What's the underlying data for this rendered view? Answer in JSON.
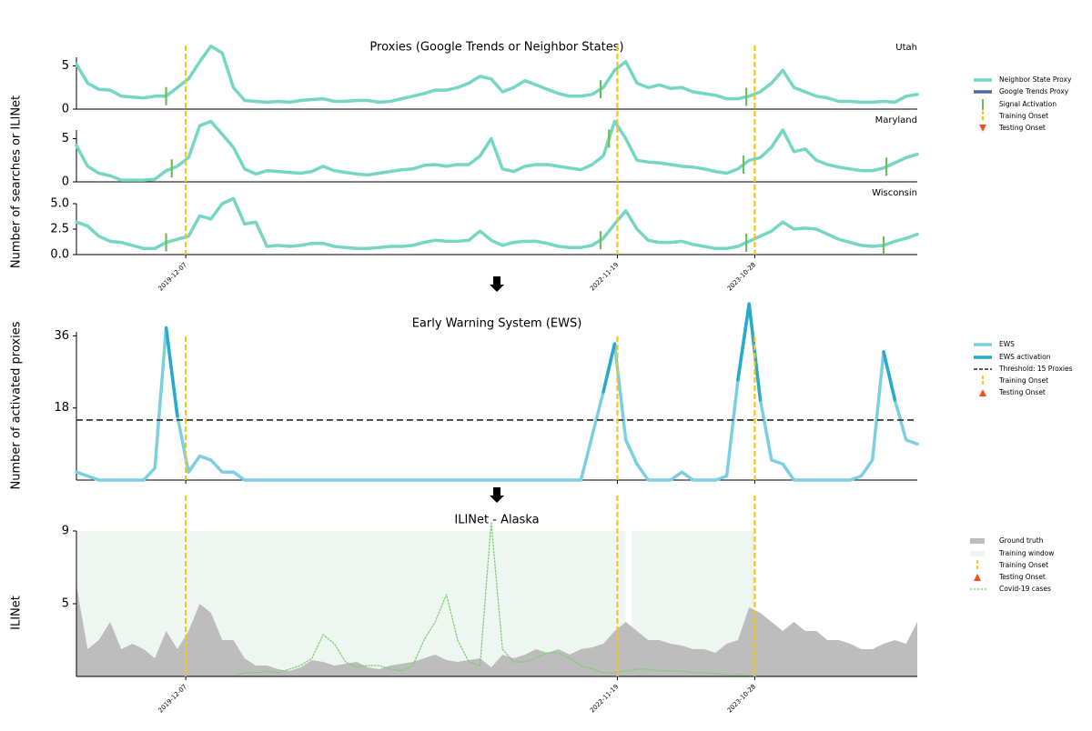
{
  "chart_data": {
    "type": "line",
    "x": [
      "2019-03-09",
      "2019-04-06",
      "2019-05-04",
      "2019-06-01",
      "2019-06-29",
      "2019-07-27",
      "2019-08-24",
      "2019-09-21",
      "2019-10-19",
      "2019-11-16",
      "2019-12-14",
      "2020-01-11",
      "2020-02-08",
      "2020-03-07",
      "2020-04-04",
      "2020-05-02",
      "2020-05-30",
      "2020-06-27",
      "2020-07-25",
      "2020-08-22",
      "2020-09-19",
      "2020-10-17",
      "2020-11-14",
      "2020-12-12",
      "2021-01-09",
      "2021-02-06",
      "2021-03-06",
      "2021-04-03",
      "2021-05-01",
      "2021-05-29",
      "2021-06-26",
      "2021-07-24",
      "2021-08-21",
      "2021-09-18",
      "2021-10-16",
      "2021-11-13",
      "2021-12-11",
      "2022-01-08",
      "2022-02-05",
      "2022-03-05",
      "2022-04-02",
      "2022-04-30",
      "2022-05-28",
      "2022-06-25",
      "2022-07-23",
      "2022-08-20",
      "2022-09-17",
      "2022-10-15",
      "2022-11-12",
      "2022-12-10",
      "2023-01-07",
      "2023-02-04",
      "2023-03-04",
      "2023-04-01",
      "2023-04-29",
      "2023-05-27",
      "2023-06-24",
      "2023-07-22",
      "2023-08-19",
      "2023-09-16",
      "2023-10-14",
      "2023-11-11",
      "2023-12-09",
      "2024-01-06",
      "2024-02-03",
      "2024-03-02",
      "2024-03-30",
      "2024-04-27",
      "2024-05-25",
      "2024-06-22",
      "2024-07-20",
      "2024-08-17",
      "2024-09-14",
      "2024-10-12",
      "2024-11-09",
      "2024-12-07"
    ],
    "xlim": [
      "2019-03-09",
      "2024-12-07"
    ],
    "xticks": [
      "2019-12-07",
      "2022-11-19",
      "2023-10-28"
    ],
    "training_onset": {
      "name": "Training Onset",
      "color": "#f5c518",
      "dates": [
        "2019-12-07",
        "2022-11-19",
        "2023-10-28"
      ]
    },
    "testing_onset": {
      "name": "Testing Onset",
      "color": "#f4511e"
    },
    "proxies": {
      "title": "Proxies (Google Trends or Neighbor States)",
      "ylabel": "Number of searches or ILINet",
      "series": [
        {
          "name": "Neighbor State Proxy",
          "color": "#74d6c3"
        },
        {
          "name": "Google Trends Proxy",
          "color": "#4a6ba8"
        }
      ],
      "signal_activation": {
        "name": "Signal Activation",
        "color": "#6bbf59"
      },
      "panels": [
        {
          "label": "Utah",
          "ylim": [
            0,
            6
          ],
          "yticks": [
            0,
            5
          ],
          "values": [
            5.2,
            3.0,
            2.3,
            2.2,
            1.5,
            1.4,
            1.3,
            1.5,
            1.5,
            2.5,
            3.5,
            5.5,
            7.3,
            6.5,
            2.5,
            1.0,
            0.9,
            0.8,
            0.9,
            0.8,
            1.0,
            1.1,
            1.2,
            0.9,
            0.9,
            1.0,
            1.0,
            0.8,
            0.9,
            1.2,
            1.5,
            1.8,
            2.2,
            2.2,
            2.5,
            3.0,
            3.8,
            3.5,
            2.0,
            2.5,
            3.3,
            2.8,
            2.3,
            1.8,
            1.5,
            1.5,
            1.7,
            2.5,
            4.5,
            5.5,
            3.0,
            2.5,
            2.8,
            2.4,
            2.5,
            2.0,
            1.8,
            1.6,
            1.2,
            1.2,
            1.5,
            2.0,
            3.0,
            4.5,
            2.5,
            2.0,
            1.5,
            1.3,
            0.9,
            0.9,
            0.8,
            0.8,
            0.9,
            0.8,
            1.5,
            1.7
          ],
          "activations": [
            "2019-10-19",
            "2022-10-08",
            "2023-10-07"
          ]
        },
        {
          "label": "Maryland",
          "ylim": [
            0,
            6
          ],
          "yticks": [
            0,
            5
          ],
          "values": [
            4.2,
            1.8,
            1.0,
            0.7,
            0.2,
            0.2,
            0.2,
            0.3,
            1.3,
            1.8,
            2.8,
            6.5,
            7.0,
            5.5,
            4.0,
            1.5,
            0.9,
            1.3,
            1.2,
            1.1,
            1.0,
            1.2,
            1.8,
            1.3,
            1.1,
            0.9,
            0.8,
            1.0,
            1.2,
            1.4,
            1.5,
            1.9,
            2.0,
            1.8,
            2.0,
            2.0,
            3.0,
            5.0,
            1.5,
            1.2,
            1.8,
            2.0,
            2.0,
            1.8,
            1.6,
            1.4,
            2.0,
            3.0,
            7.0,
            5.0,
            2.5,
            2.3,
            2.2,
            2.0,
            1.8,
            1.7,
            1.5,
            1.2,
            1.0,
            1.5,
            2.5,
            2.8,
            4.0,
            6.0,
            3.5,
            3.8,
            2.5,
            2.0,
            1.7,
            1.5,
            1.3,
            1.3,
            1.6,
            2.2,
            2.8,
            3.2
          ],
          "activations": [
            "2019-11-02",
            "2022-10-29",
            "2023-09-30",
            "2024-09-21"
          ]
        },
        {
          "label": "Wisconsin",
          "ylim": [
            0,
            5
          ],
          "yticks": [
            {
              "value": 0,
              "label": "0.0"
            },
            {
              "value": 2.5,
              "label": "2.5"
            },
            {
              "value": 5,
              "label": "5.0"
            }
          ],
          "values": [
            3.2,
            2.8,
            1.8,
            1.3,
            1.2,
            0.9,
            0.6,
            0.6,
            1.2,
            1.5,
            1.8,
            3.8,
            3.5,
            5.0,
            5.5,
            3.0,
            3.2,
            0.8,
            0.9,
            0.8,
            0.9,
            1.1,
            1.1,
            0.8,
            0.7,
            0.6,
            0.6,
            0.7,
            0.8,
            0.8,
            0.9,
            1.2,
            1.4,
            1.3,
            1.3,
            1.4,
            2.3,
            1.4,
            0.9,
            1.2,
            1.3,
            1.3,
            1.1,
            0.8,
            0.7,
            0.7,
            0.9,
            1.6,
            3.0,
            4.3,
            2.5,
            1.4,
            1.2,
            1.2,
            1.3,
            1.0,
            0.8,
            0.6,
            0.6,
            0.8,
            1.3,
            1.8,
            2.3,
            3.2,
            2.5,
            2.6,
            2.5,
            2.0,
            1.5,
            1.2,
            0.9,
            0.8,
            0.9,
            1.3,
            1.6,
            2.0
          ],
          "activations": [
            "2019-10-19",
            "2022-10-08",
            "2023-10-07",
            "2024-09-14"
          ]
        }
      ]
    },
    "ews": {
      "title": "Early Warning System (EWS)",
      "ylabel": "Number of activated proxies",
      "ylim": [
        0,
        37
      ],
      "yticks": [
        18,
        36
      ],
      "series": [
        {
          "name": "EWS",
          "color": "#7ccfe0",
          "values": [
            2,
            1,
            0,
            0,
            0,
            0,
            0,
            3,
            38,
            16,
            2,
            6,
            5,
            2,
            2,
            0,
            0,
            0,
            0,
            0,
            0,
            0,
            0,
            0,
            0,
            0,
            0,
            0,
            0,
            0,
            0,
            0,
            0,
            0,
            0,
            0,
            0,
            0,
            0,
            0,
            0,
            0,
            0,
            0,
            0,
            0,
            11,
            22,
            34,
            10,
            4,
            0,
            0,
            0,
            2,
            0,
            0,
            0,
            1,
            25,
            44,
            20,
            5,
            4,
            0,
            0,
            0,
            0,
            0,
            0,
            1,
            5,
            32,
            20,
            10,
            9
          ]
        }
      ],
      "activation": {
        "name": "EWS activation",
        "color": "#27aacb"
      },
      "threshold": {
        "name": "Threshold: 15 Proxies",
        "value": 15,
        "color": "#444444"
      }
    },
    "ilinet": {
      "title": "ILINet - Alaska",
      "ylabel": "ILINet",
      "ylim": [
        1,
        9
      ],
      "yticks": [
        5,
        9
      ],
      "series": [
        {
          "name": "Ground truth",
          "color": "#bdbdbd",
          "values": [
            6.0,
            2.5,
            3.0,
            4.0,
            2.5,
            2.8,
            2.5,
            2.0,
            3.5,
            2.5,
            3.5,
            5.0,
            4.5,
            3.0,
            3.0,
            2.0,
            1.6,
            1.6,
            1.4,
            1.3,
            1.5,
            1.9,
            1.8,
            1.6,
            1.7,
            1.8,
            1.5,
            1.4,
            1.6,
            1.7,
            1.8,
            2.0,
            2.2,
            1.9,
            1.8,
            1.9,
            2.0,
            1.5,
            2.2,
            2.0,
            2.2,
            2.5,
            2.3,
            2.5,
            2.2,
            2.5,
            2.6,
            2.8,
            3.5,
            4.0,
            3.5,
            3.0,
            3.0,
            2.8,
            2.7,
            2.5,
            2.5,
            2.3,
            2.8,
            3.0,
            4.8,
            4.5,
            4.0,
            3.5,
            4.0,
            3.5,
            3.5,
            3.0,
            3.0,
            2.8,
            2.5,
            2.5,
            2.8,
            3.0,
            2.8,
            4.0
          ]
        },
        {
          "name": "Covid-19 cases",
          "color": "#7ccf6e",
          "values": [
            null,
            null,
            null,
            null,
            null,
            null,
            null,
            null,
            null,
            null,
            null,
            null,
            null,
            null,
            1.0,
            1.2,
            1.2,
            1.3,
            1.2,
            1.4,
            1.6,
            2.0,
            3.3,
            2.8,
            1.8,
            1.5,
            1.6,
            1.6,
            1.4,
            1.3,
            1.6,
            3.0,
            4.0,
            5.5,
            3.0,
            1.8,
            1.6,
            9.5,
            2.5,
            1.8,
            1.8,
            2.0,
            2.3,
            2.3,
            2.0,
            1.6,
            1.4,
            1.2,
            1.2,
            1.3,
            1.4,
            1.4,
            1.3,
            1.3,
            1.3,
            1.2,
            1.2,
            1.15,
            1.1,
            1.1,
            1.1,
            null,
            null,
            null,
            null,
            null,
            null,
            null,
            null,
            null,
            null,
            null,
            null,
            null,
            null,
            null
          ]
        }
      ],
      "training_window": {
        "name": "Training window",
        "color": "#eef6f2",
        "ranges": [
          [
            "2019-03-09",
            "2022-12-10"
          ],
          [
            "2022-12-24",
            "2023-10-28"
          ]
        ]
      }
    }
  }
}
